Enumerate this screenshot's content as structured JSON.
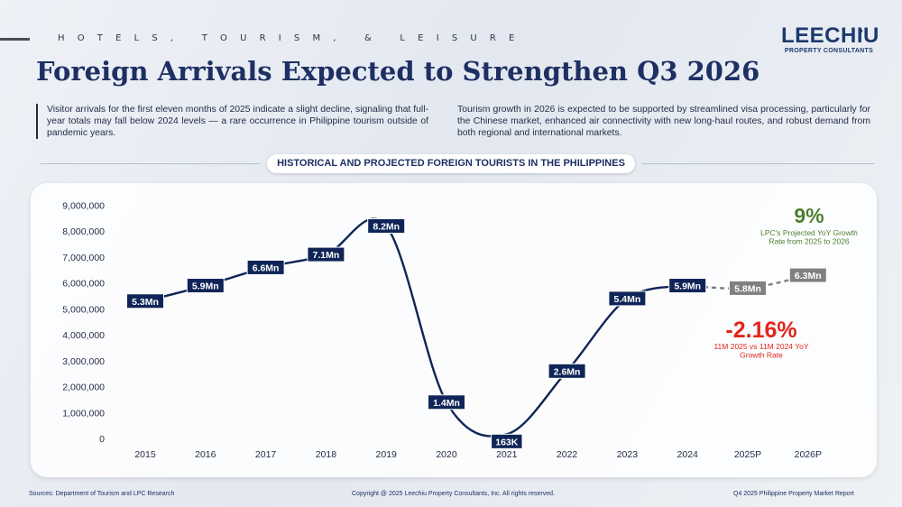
{
  "header": {
    "section_label": "HOTELS, TOURISM, & LEISURE",
    "logo_main": "LEECHIU",
    "logo_sub": "PROPERTY CONSULTANTS"
  },
  "title": "Foreign Arrivals Expected to Strengthen Q3 2026",
  "intro_left": "Visitor arrivals for the first eleven months of 2025 indicate a slight decline, signaling that full-year totals may fall below 2024 levels — a rare occurrence in Philippine tourism outside of pandemic years.",
  "intro_right": "Tourism growth in 2026 is expected to be supported by streamlined visa processing, particularly for the Chinese market, enhanced air connectivity with new long-haul routes, and robust demand from both regional and international markets.",
  "chart_title": "HISTORICAL AND PROJECTED FOREIGN TOURISTS IN THE PHILIPPINES",
  "chart_data": {
    "type": "line",
    "title": "HISTORICAL AND PROJECTED FOREIGN TOURISTS IN THE PHILIPPINES",
    "xlabel": "",
    "ylabel": "",
    "ylim": [
      0,
      9000000
    ],
    "y_ticks": [
      "0",
      "1,000,000",
      "2,000,000",
      "3,000,000",
      "4,000,000",
      "5,000,000",
      "6,000,000",
      "7,000,000",
      "8,000,000",
      "9,000,000"
    ],
    "categories": [
      "2015",
      "2016",
      "2017",
      "2018",
      "2019",
      "2020",
      "2021",
      "2022",
      "2023",
      "2024",
      "2025P",
      "2026P"
    ],
    "values": [
      5300000,
      5900000,
      6600000,
      7100000,
      8200000,
      1400000,
      163000,
      2600000,
      5400000,
      5900000,
      5800000,
      6300000
    ],
    "data_labels": [
      "5.3Mn",
      "5.9Mn",
      "6.6Mn",
      "7.1Mn",
      "8.2Mn",
      "1.4Mn",
      "163K",
      "2.6Mn",
      "5.4Mn",
      "5.9Mn",
      "5.8Mn",
      "6.3Mn"
    ],
    "projected_from_index": 9,
    "annotations": [
      {
        "value": "9%",
        "text": "LPC's Projected YoY Growth Rate from 2025 to 2026",
        "color": "#4f7f2f"
      },
      {
        "value": "-2.16%",
        "text": "11M 2025 vs 11M 2024 YoY Growth Rate",
        "color": "#e1251b"
      }
    ]
  },
  "colors": {
    "navy": "#0f2557",
    "projected_gray": "#808080",
    "green": "#4f7f2f",
    "red": "#e1251b"
  },
  "footer": {
    "sources": "Sources: Department of Tourism and LPC Research",
    "copyright": "Copyright @ 2025 Leechiu Property Consultants, Inc. All rights reserved.",
    "report": "Q4 2025 Philippine Property Market Report"
  }
}
